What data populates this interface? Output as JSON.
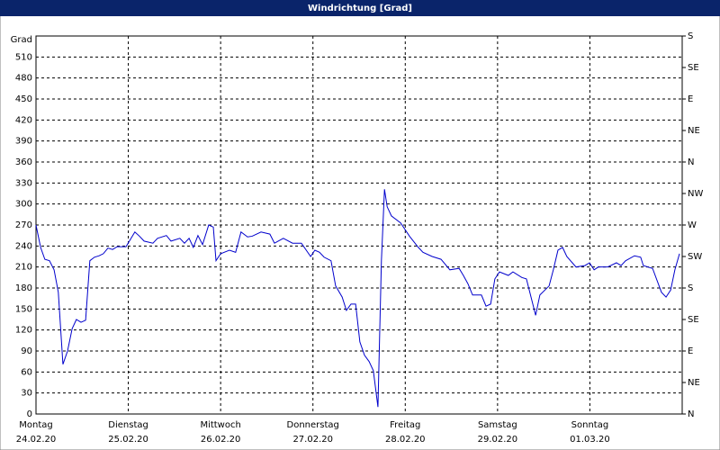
{
  "chart_data": {
    "type": "line",
    "title": "Windrichtung [Grad]",
    "y_label": "Grad",
    "xlim": [
      0,
      168
    ],
    "xticks": [
      {
        "value": 0,
        "label": "Montag",
        "date": "24.02.20"
      },
      {
        "value": 24,
        "label": "Dienstag",
        "date": "25.02.20"
      },
      {
        "value": 48,
        "label": "Mittwoch",
        "date": "26.02.20"
      },
      {
        "value": 72,
        "label": "Donnerstag",
        "date": "27.02.20"
      },
      {
        "value": 96,
        "label": "Freitag",
        "date": "28.02.20"
      },
      {
        "value": 120,
        "label": "Samstag",
        "date": "29.02.20"
      },
      {
        "value": 144,
        "label": "Sonntag",
        "date": "01.03.20"
      }
    ],
    "ylim": [
      0,
      540
    ],
    "yticks": [
      0,
      30,
      60,
      90,
      120,
      150,
      180,
      210,
      240,
      270,
      300,
      330,
      360,
      390,
      420,
      450,
      480,
      510
    ],
    "y2lim": [
      0,
      540
    ],
    "y2ticks": [
      {
        "value": 0,
        "label": "N"
      },
      {
        "value": 45,
        "label": "NE"
      },
      {
        "value": 90,
        "label": "E"
      },
      {
        "value": 135,
        "label": "SE"
      },
      {
        "value": 180,
        "label": "S"
      },
      {
        "value": 225,
        "label": "SW"
      },
      {
        "value": 270,
        "label": "W"
      },
      {
        "value": 315,
        "label": "NW"
      },
      {
        "value": 360,
        "label": "N"
      },
      {
        "value": 405,
        "label": "NE"
      },
      {
        "value": 450,
        "label": "E"
      },
      {
        "value": 495,
        "label": "SE"
      },
      {
        "value": 540,
        "label": "S"
      }
    ],
    "grid": true,
    "series": [
      {
        "color": "#0000cc",
        "x": [
          0,
          1.2,
          2.3,
          3.5,
          4.7,
          5.8,
          7.0,
          8.2,
          9.4,
          10.5,
          11.7,
          12.9,
          14.0,
          15.2,
          16.4,
          17.5,
          18.7,
          19.9,
          21.1,
          23.4,
          25.7,
          26.9,
          28.1,
          30.4,
          31.6,
          33.9,
          35.1,
          37.4,
          38.6,
          39.8,
          40.9,
          42.1,
          43.3,
          44.9,
          46.1,
          46.8,
          48.0,
          50.3,
          51.9,
          53.3,
          55.0,
          56.2,
          58.5,
          60.8,
          62.0,
          64.3,
          66.7,
          69.0,
          71.4,
          72.5,
          73.7,
          74.9,
          76.7,
          77.9,
          79.6,
          80.7,
          81.9,
          83.1,
          84.2,
          85.4,
          86.6,
          87.7,
          88.9,
          89.8,
          90.6,
          91.3,
          92.4,
          94.8,
          97.1,
          99.4,
          100.6,
          103.0,
          105.3,
          107.6,
          110.0,
          111.1,
          112.3,
          113.5,
          115.8,
          117.0,
          118.2,
          119.3,
          120.5,
          122.8,
          124.0,
          126.3,
          127.5,
          129.9,
          131.0,
          133.4,
          134.5,
          135.7,
          136.9,
          138.0,
          140.4,
          142.7,
          143.9,
          145.1,
          146.2,
          148.6,
          150.9,
          152.1,
          153.3,
          155.6,
          157.2,
          157.9,
          160.3,
          162.6,
          163.8,
          165.0,
          166.1,
          167.3
        ],
        "values": [
          270,
          238,
          221,
          219,
          206,
          174,
          71,
          90,
          122,
          135,
          131,
          134,
          219,
          224,
          226,
          229,
          237,
          235,
          239,
          239,
          260,
          254,
          247,
          244,
          251,
          255,
          247,
          251,
          244,
          251,
          238,
          255,
          242,
          270,
          267,
          219,
          229,
          234,
          231,
          260,
          253,
          254,
          260,
          257,
          244,
          251,
          244,
          244,
          225,
          234,
          231,
          224,
          219,
          183,
          167,
          148,
          157,
          157,
          103,
          84,
          75,
          62,
          10,
          219,
          321,
          296,
          283,
          273,
          254,
          238,
          231,
          225,
          221,
          206,
          208,
          198,
          186,
          170,
          170,
          154,
          157,
          193,
          203,
          198,
          203,
          195,
          193,
          141,
          170,
          183,
          206,
          234,
          238,
          225,
          210,
          212,
          216,
          206,
          210,
          210,
          216,
          212,
          219,
          226,
          224,
          212,
          208,
          174,
          167,
          177,
          206,
          229
        ]
      }
    ]
  }
}
